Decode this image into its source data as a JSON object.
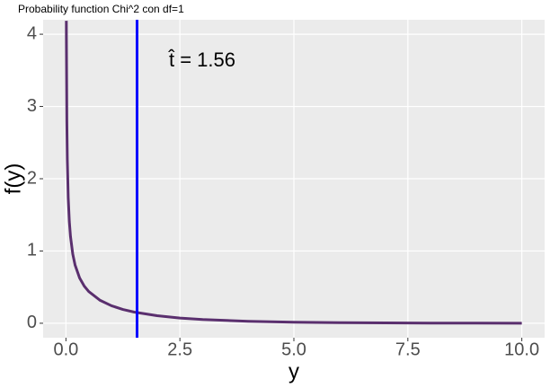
{
  "chart_data": {
    "type": "line",
    "title": "Probability function Chi^2 con df=1",
    "xlabel": "y",
    "ylabel": "f(y)",
    "series": [
      {
        "color": "#5a2f6e",
        "x": [
          0.009,
          0.01,
          0.02,
          0.03,
          0.05,
          0.075,
          0.1,
          0.15,
          0.2,
          0.3,
          0.4,
          0.5,
          0.75,
          1,
          1.25,
          1.5,
          2,
          2.5,
          3,
          4,
          5,
          6,
          7,
          8,
          9,
          10
        ],
        "values": [
          4.186,
          3.97,
          2.793,
          2.269,
          1.74,
          1.403,
          1.2,
          0.956,
          0.807,
          0.627,
          0.516,
          0.439,
          0.317,
          0.242,
          0.191,
          0.154,
          0.104,
          0.0723,
          0.0514,
          0.027,
          0.0146,
          0.0081,
          0.0046,
          0.0026,
          0.0015,
          0.00085
        ]
      }
    ],
    "vline": {
      "x": 1.56,
      "color": "#0000ff",
      "label": "t̂ = 1.56"
    },
    "xlim": [
      -0.5,
      10.5
    ],
    "ylim": [
      -0.2,
      4.2
    ],
    "xticks": [
      {
        "value": 0,
        "label": "0.0"
      },
      2.5,
      {
        "value": 5,
        "label": "5.0"
      },
      7.5,
      {
        "value": 10,
        "label": "10.0"
      }
    ],
    "yticks": [
      0,
      1,
      2,
      3,
      4
    ],
    "grid": true
  }
}
